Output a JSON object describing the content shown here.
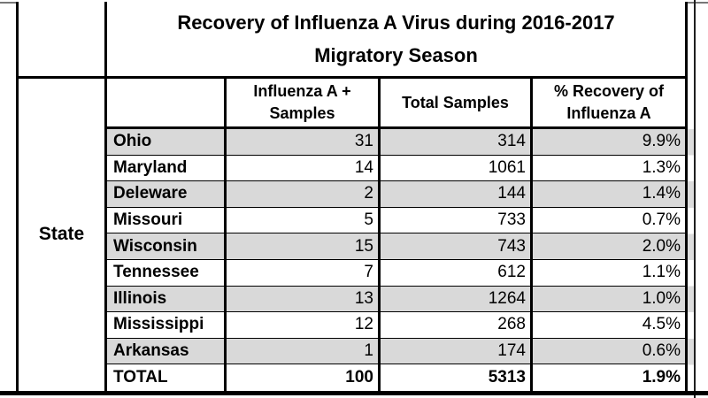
{
  "colors": {
    "stripe": "#d9d9d9",
    "border": "#000000",
    "text": "#000000",
    "background": "#ffffff"
  },
  "table": {
    "title_line1": "Recovery of Influenza A Virus during 2016-2017",
    "title_line2": "Migratory Season",
    "row_group_label": "State",
    "headers": {
      "positive": "Influenza A + Samples",
      "total": "Total Samples",
      "pct": "% Recovery of Influenza A"
    },
    "rows": [
      {
        "state": "Ohio",
        "positive": "31",
        "total": "314",
        "pct": "9.9%"
      },
      {
        "state": "Maryland",
        "positive": "14",
        "total": "1061",
        "pct": "1.3%"
      },
      {
        "state": "Deleware",
        "positive": "2",
        "total": "144",
        "pct": "1.4%"
      },
      {
        "state": "Missouri",
        "positive": "5",
        "total": "733",
        "pct": "0.7%"
      },
      {
        "state": "Wisconsin",
        "positive": "15",
        "total": "743",
        "pct": "2.0%"
      },
      {
        "state": "Tennessee",
        "positive": "7",
        "total": "612",
        "pct": "1.1%"
      },
      {
        "state": "Illinois",
        "positive": "13",
        "total": "1264",
        "pct": "1.0%"
      },
      {
        "state": "Mississippi",
        "positive": "12",
        "total": "268",
        "pct": "4.5%"
      },
      {
        "state": "Arkansas",
        "positive": "1",
        "total": "174",
        "pct": "0.6%"
      },
      {
        "state": "TOTAL",
        "positive": "100",
        "total": "5313",
        "pct": "1.9%"
      }
    ]
  },
  "chart_data": {
    "type": "table",
    "title": "Recovery of Influenza A Virus during 2016-2017 Migratory Season",
    "row_group_label": "State",
    "columns": [
      "State",
      "Influenza A + Samples",
      "Total Samples",
      "% Recovery of Influenza A"
    ],
    "rows": [
      [
        "Ohio",
        31,
        314,
        "9.9%"
      ],
      [
        "Maryland",
        14,
        1061,
        "1.3%"
      ],
      [
        "Deleware",
        2,
        144,
        "1.4%"
      ],
      [
        "Missouri",
        5,
        733,
        "0.7%"
      ],
      [
        "Wisconsin",
        15,
        743,
        "2.0%"
      ],
      [
        "Tennessee",
        7,
        612,
        "1.1%"
      ],
      [
        "Illinois",
        13,
        1264,
        "1.0%"
      ],
      [
        "Mississippi",
        12,
        268,
        "4.5%"
      ],
      [
        "Arkansas",
        1,
        174,
        "0.6%"
      ],
      [
        "TOTAL",
        100,
        5313,
        "1.9%"
      ]
    ],
    "layout_hints": {
      "striped_rows": "alternating starting with first data row",
      "stripe_color": "#d9d9d9",
      "grid": true
    }
  }
}
